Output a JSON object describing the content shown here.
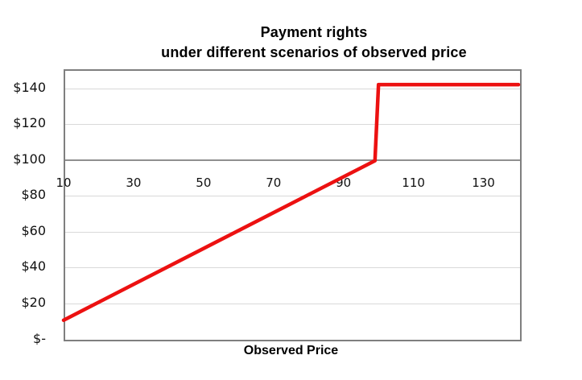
{
  "title": {
    "line1": "Payment rights",
    "line2": "under different scenarios of observed price"
  },
  "x_axis": {
    "title": "Observed Price",
    "tick_values": [
      10,
      30,
      50,
      70,
      90,
      110,
      130
    ],
    "tick_labels": [
      "10",
      "30",
      "50",
      "70",
      "90",
      "110",
      "130"
    ],
    "min": 10,
    "max": 140
  },
  "y_axis": {
    "tick_values": [
      0,
      20,
      40,
      60,
      80,
      100,
      120,
      140
    ],
    "tick_labels": [
      "$-",
      "$20",
      "$40",
      "$60",
      "$80",
      "$100",
      "$120",
      "$140"
    ],
    "min": 0,
    "max": 150,
    "axis_cross_value": 100
  },
  "chart_data": {
    "type": "line",
    "title": "Payment rights under different scenarios of observed price",
    "xlabel": "Observed Price",
    "ylabel": "",
    "xlim": [
      10,
      140
    ],
    "ylim": [
      0,
      150
    ],
    "grid": true,
    "legend": false,
    "x_ticks": [
      10,
      30,
      50,
      70,
      90,
      110,
      130
    ],
    "y_ticks": [
      0,
      20,
      40,
      60,
      80,
      100,
      120,
      140
    ],
    "series": [
      {
        "name": "Payment rights",
        "color": "#ec1111",
        "stroke_width": 4.5,
        "points": [
          [
            10,
            10
          ],
          [
            99,
            99
          ],
          [
            100,
            141.4
          ],
          [
            140,
            141.4
          ]
        ],
        "description": "Payment equals observed price up to 99, jumps to ~141 at observed price 100, then stays flat at ~141 through 140"
      }
    ]
  },
  "colors": {
    "line": "#ec1111",
    "gridline": "#d9d9d9",
    "plot_border": "#7f7f7f",
    "crossing_axis": "#8f8f8f",
    "text": "#000000",
    "background": "#ffffff"
  }
}
